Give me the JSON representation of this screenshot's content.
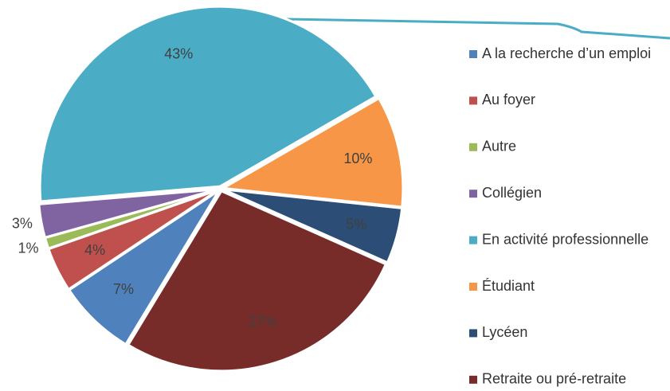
{
  "chart_data": {
    "type": "pie",
    "categories": [
      "A la recherche d’un emploi",
      "Au foyer",
      "Autre",
      "Collégien",
      "En activité professionnelle",
      "Étudiant",
      "Lycéen",
      "Retraite ou pré-retraite"
    ],
    "values": [
      7,
      4,
      1,
      3,
      43,
      10,
      5,
      27
    ],
    "value_labels": [
      "7%",
      "4%",
      "1%",
      "3%",
      "43%",
      "10%",
      "5%",
      "27%"
    ],
    "colors": [
      "#4f81bd",
      "#c0504d",
      "#9bbb59",
      "#8064a2",
      "#4bacc6",
      "#f79646",
      "#2c4d75",
      "#772c2a"
    ],
    "legend": "right"
  }
}
